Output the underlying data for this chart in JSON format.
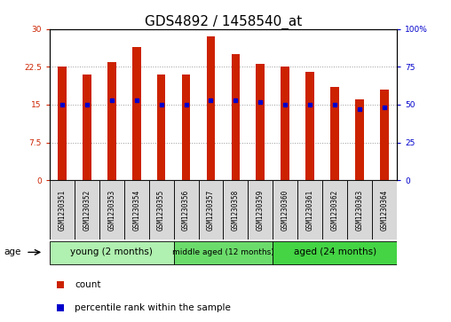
{
  "title": "GDS4892 / 1458540_at",
  "samples": [
    "GSM1230351",
    "GSM1230352",
    "GSM1230353",
    "GSM1230354",
    "GSM1230355",
    "GSM1230356",
    "GSM1230357",
    "GSM1230358",
    "GSM1230359",
    "GSM1230360",
    "GSM1230361",
    "GSM1230362",
    "GSM1230363",
    "GSM1230364"
  ],
  "counts": [
    22.5,
    21.0,
    23.5,
    26.5,
    21.0,
    21.0,
    28.5,
    25.0,
    23.0,
    22.5,
    21.5,
    18.5,
    16.0,
    18.0
  ],
  "percentiles": [
    50,
    50,
    53,
    53,
    50,
    50,
    53,
    53,
    52,
    50,
    50,
    50,
    47,
    48
  ],
  "groups": [
    {
      "label": "young (2 months)",
      "start": 0,
      "end": 5
    },
    {
      "label": "middle aged (12 months)",
      "start": 5,
      "end": 9
    },
    {
      "label": "aged (24 months)",
      "start": 9,
      "end": 14
    }
  ],
  "group_colors": [
    "#b0f0b0",
    "#6bdc6b",
    "#44d444"
  ],
  "group_label": "age",
  "ylim_left": [
    0,
    30
  ],
  "ylim_right": [
    0,
    100
  ],
  "yticks_left": [
    0,
    7.5,
    15,
    22.5,
    30
  ],
  "yticks_right": [
    0,
    25,
    50,
    75,
    100
  ],
  "bar_color": "#cc2200",
  "dot_color": "#0000cc",
  "bar_width": 0.35,
  "legend_count_label": "count",
  "legend_pct_label": "percentile rank within the sample",
  "bg_color": "#ffffff",
  "plot_bg": "#ffffff",
  "grid_color": "#999999",
  "title_fontsize": 11,
  "tick_fontsize": 6.5,
  "label_fontsize": 8
}
